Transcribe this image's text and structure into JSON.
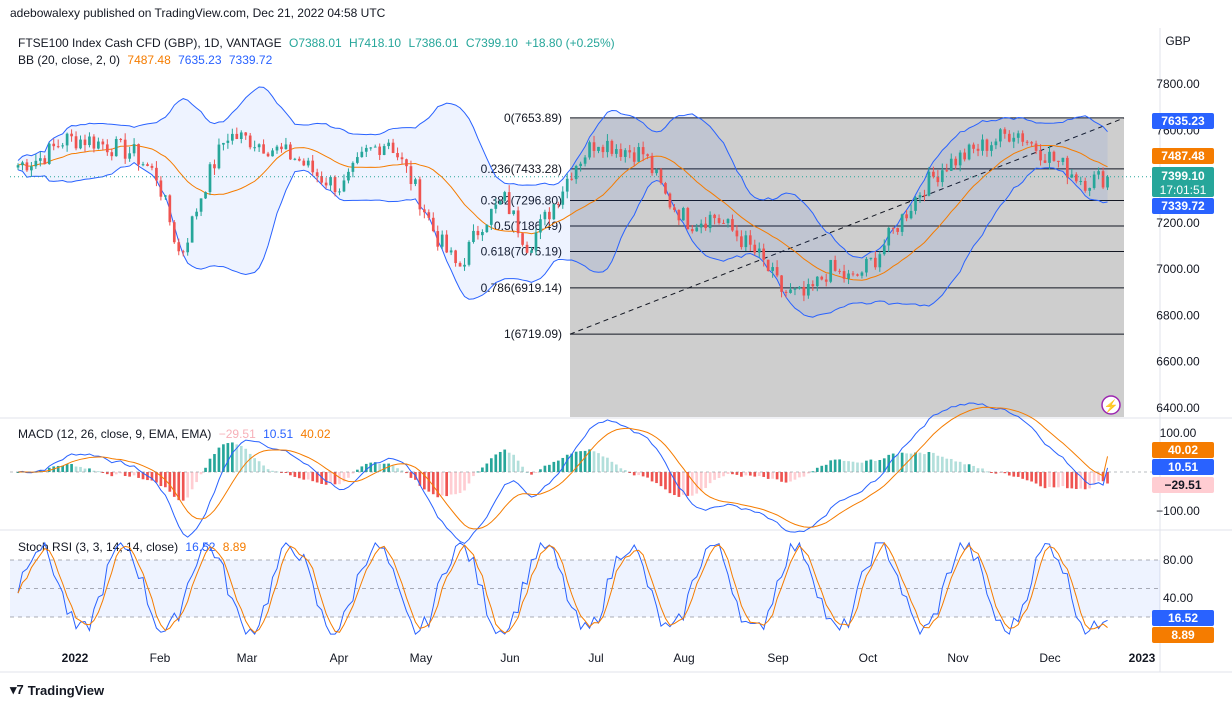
{
  "header": {
    "publisher": "adebowalexy published on TradingView.com, Dec 21, 2022 04:58 UTC"
  },
  "main_legend": {
    "symbol": "FTSE100 Index Cash CFD (GBP), 1D, VANTAGE",
    "o": "O7388.01",
    "h": "H7418.10",
    "l": "L7386.01",
    "c": "C7399.10",
    "chg": "+18.80 (+0.25%)"
  },
  "bb_legend": {
    "name": "BB (20, close, 2, 0)",
    "basis": "7487.48",
    "upper": "7635.23",
    "lower": "7339.72"
  },
  "macd_legend": {
    "name": "MACD (12, 26, close, 9, EMA, EMA)",
    "hist": "−29.51",
    "macd": "10.51",
    "signal": "40.02"
  },
  "stoch_legend": {
    "name": "Stoch RSI (3, 3, 14, 14, close)",
    "k": "16.52",
    "d": "8.89"
  },
  "price_scale": {
    "currency": "GBP",
    "ticks": [
      "7800.00",
      "7600.00",
      "7200.00",
      "7000.00",
      "6800.00",
      "6600.00",
      "6400.00"
    ]
  },
  "macd_scale": {
    "ticks": [
      "100.00",
      "−100.00"
    ]
  },
  "stoch_scale": {
    "ticks": [
      "80.00",
      "40.00"
    ]
  },
  "tags": {
    "bb_upper": "7635.23",
    "bb_basis": "7487.48",
    "last": "7399.10",
    "countdown": "17:01:51",
    "bb_lower": "7339.72",
    "macd_signal": "40.02",
    "macd_line": "10.51",
    "macd_hist": "−29.51",
    "stoch_k": "16.52",
    "stoch_d": "8.89"
  },
  "time_axis": [
    "2022",
    "Feb",
    "Mar",
    "Apr",
    "May",
    "Jun",
    "Jul",
    "Aug",
    "Sep",
    "Oct",
    "Nov",
    "Dec",
    "2023"
  ],
  "fib_labels": [
    "0(7653.89)",
    "0.236(7433.28)",
    "0.382(7296.80)",
    "0.5(7186.49)",
    "0.618(7076.19)",
    "0.786(6919.14)",
    "1(6719.09)"
  ],
  "footer": {
    "brand": "TradingView"
  },
  "colors": {
    "up": "#26a69a",
    "down": "#ef5350",
    "bb_band": "#2962ff",
    "bb_basis": "#f57c00",
    "macd": "#2962ff",
    "signal": "#f57c00",
    "fib_zone": "#bdbdbd"
  },
  "chart_data": [
    {
      "type": "candlestick",
      "title": "FTSE100 Index Cash CFD (GBP), 1D, VANTAGE",
      "ylabel": "GBP",
      "ylim": [
        6380,
        7900
      ],
      "x": [
        "2022-01",
        "2022-02",
        "2022-03",
        "2022-04",
        "2022-05",
        "2022-06",
        "2022-07",
        "2022-08",
        "2022-09",
        "2022-10",
        "2022-11",
        "2022-12"
      ],
      "close_approx": [
        7460,
        7530,
        7150,
        7550,
        7400,
        7350,
        7250,
        7450,
        7300,
        6950,
        7300,
        7399.1
      ],
      "last": {
        "open": 7388.01,
        "high": 7418.1,
        "low": 7386.01,
        "close": 7399.1,
        "change": 18.8,
        "change_pct": 0.25
      },
      "bollinger": {
        "length": 20,
        "basis": 7487.48,
        "upper": 7635.23,
        "lower": 7339.72
      },
      "fibonacci": [
        {
          "level": 0,
          "price": 7653.89
        },
        {
          "level": 0.236,
          "price": 7433.28
        },
        {
          "level": 0.382,
          "price": 7296.8
        },
        {
          "level": 0.5,
          "price": 7186.49
        },
        {
          "level": 0.618,
          "price": 7076.19
        },
        {
          "level": 0.786,
          "price": 6919.14
        },
        {
          "level": 1,
          "price": 6719.09
        }
      ]
    },
    {
      "type": "line",
      "title": "MACD (12, 26, close, 9, EMA, EMA)",
      "ylim": [
        -130,
        130
      ],
      "series": [
        {
          "name": "MACD",
          "last": 10.51
        },
        {
          "name": "Signal",
          "last": 40.02
        },
        {
          "name": "Histogram",
          "last": -29.51
        }
      ]
    },
    {
      "type": "line",
      "title": "Stoch RSI (3, 3, 14, 14, close)",
      "ylim": [
        0,
        100
      ],
      "series": [
        {
          "name": "K",
          "last": 16.52
        },
        {
          "name": "D",
          "last": 8.89
        }
      ]
    }
  ]
}
